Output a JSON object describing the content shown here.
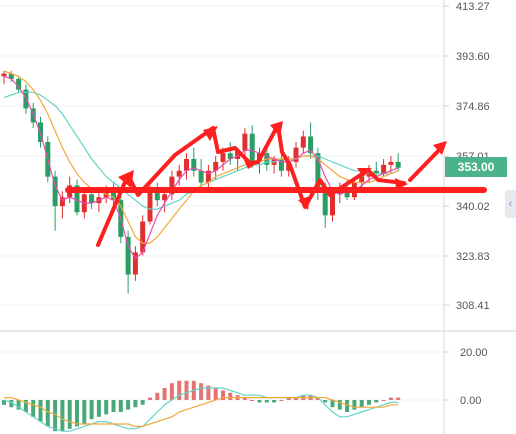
{
  "chart_data": [
    {
      "type": "candlestick",
      "yticks": [
        "413.27",
        "393.60",
        "374.86",
        "357.01",
        "340.02",
        "323.83",
        "308.41"
      ],
      "ylim": [
        300,
        416
      ],
      "last_price": "353.00",
      "colors": {
        "up": "#e02f2f",
        "down": "#2a9d62",
        "ma_fast": "#e44fae",
        "ma_mid": "#f2a93b",
        "ma_slow": "#63d4c8",
        "annotation": "#ff1f1f"
      },
      "candles": [
        [
          386,
          388,
          383,
          387
        ],
        [
          387,
          388,
          384,
          385
        ],
        [
          385,
          386,
          380,
          381
        ],
        [
          381,
          383,
          372,
          374
        ],
        [
          374,
          376,
          367,
          369
        ],
        [
          369,
          371,
          360,
          362
        ],
        [
          362,
          364,
          348,
          350
        ],
        [
          350,
          352,
          332,
          340
        ],
        [
          340,
          345,
          336,
          343
        ],
        [
          343,
          350,
          341,
          347
        ],
        [
          347,
          349,
          337,
          338
        ],
        [
          338,
          346,
          336,
          344
        ],
        [
          344,
          346,
          339,
          341
        ],
        [
          341,
          345,
          338,
          343
        ],
        [
          343,
          347,
          341,
          346
        ],
        [
          346,
          348,
          340,
          342
        ],
        [
          342,
          344,
          328,
          330
        ],
        [
          330,
          332,
          312,
          318
        ],
        [
          318,
          327,
          316,
          325
        ],
        [
          325,
          337,
          324,
          335
        ],
        [
          335,
          347,
          334,
          345
        ],
        [
          345,
          348,
          340,
          342
        ],
        [
          342,
          346,
          338,
          344
        ],
        [
          344,
          352,
          342,
          350
        ],
        [
          350,
          354,
          347,
          352
        ],
        [
          352,
          358,
          349,
          356
        ],
        [
          356,
          360,
          350,
          352
        ],
        [
          352,
          356,
          346,
          348
        ],
        [
          348,
          354,
          346,
          352
        ],
        [
          352,
          357,
          349,
          355
        ],
        [
          355,
          360,
          352,
          358
        ],
        [
          358,
          362,
          354,
          356
        ],
        [
          356,
          360,
          352,
          359
        ],
        [
          359,
          367,
          357,
          365
        ],
        [
          365,
          368,
          353,
          355
        ],
        [
          355,
          360,
          351,
          358
        ],
        [
          358,
          361,
          352,
          354
        ],
        [
          354,
          357,
          351,
          356
        ],
        [
          356,
          358,
          350,
          352
        ],
        [
          352,
          357,
          350,
          355
        ],
        [
          355,
          362,
          353,
          360
        ],
        [
          360,
          366,
          358,
          364
        ],
        [
          364,
          369,
          356,
          358
        ],
        [
          358,
          360,
          342,
          345
        ],
        [
          345,
          348,
          333,
          337
        ],
        [
          337,
          346,
          335,
          344
        ],
        [
          344,
          348,
          341,
          346
        ],
        [
          346,
          349,
          342,
          343
        ],
        [
          343,
          349,
          342,
          348
        ],
        [
          348,
          352,
          346,
          350
        ],
        [
          350,
          354,
          348,
          352
        ],
        [
          352,
          355,
          349,
          351
        ],
        [
          351,
          356,
          350,
          354
        ],
        [
          354,
          357,
          351,
          355
        ],
        [
          355,
          358,
          352,
          353
        ]
      ],
      "ma_fast": [
        386,
        385,
        382,
        378,
        372,
        365,
        356,
        347,
        342,
        343,
        342,
        341,
        341,
        342,
        343,
        342,
        336,
        327,
        323,
        325,
        331,
        337,
        341,
        345,
        349,
        352,
        353,
        352,
        351,
        352,
        354,
        356,
        357,
        359,
        359,
        358,
        357,
        356,
        355,
        355,
        356,
        358,
        359,
        356,
        350,
        345,
        344,
        345,
        345,
        347,
        349,
        350,
        351,
        352,
        353
      ],
      "ma_mid": [
        388,
        387,
        386,
        384,
        381,
        377,
        372,
        366,
        360,
        355,
        351,
        348,
        346,
        345,
        344,
        343,
        340,
        335,
        330,
        328,
        328,
        330,
        333,
        336,
        339,
        342,
        345,
        347,
        348,
        350,
        351,
        352,
        353,
        354,
        355,
        355,
        356,
        356,
        356,
        356,
        356,
        357,
        357,
        356,
        354,
        352,
        350,
        349,
        348,
        348,
        348,
        349,
        350,
        351,
        352
      ],
      "ma_slow": [
        378,
        379,
        380,
        380,
        380,
        379,
        377,
        375,
        372,
        368,
        364,
        360,
        356,
        353,
        350,
        348,
        346,
        344,
        342,
        340,
        339,
        339,
        340,
        341,
        342,
        344,
        345,
        347,
        348,
        349,
        350,
        351,
        352,
        353,
        354,
        354,
        355,
        355,
        356,
        356,
        356,
        357,
        357,
        357,
        356,
        355,
        354,
        353,
        352,
        352,
        351,
        351,
        351,
        351,
        352
      ]
    },
    {
      "type": "macd",
      "yticks": [
        "20.00",
        "0.00"
      ],
      "ylim": [
        -15,
        25
      ],
      "histogram": [
        -2,
        -3,
        -4,
        -5,
        -7,
        -9,
        -11,
        -13,
        -13,
        -12,
        -11,
        -10,
        -8,
        -7,
        -6,
        -5,
        -5,
        -4,
        -3,
        -2,
        1,
        3,
        5,
        7,
        8,
        8,
        8,
        7,
        6,
        5,
        4,
        3,
        2,
        1,
        0,
        -1,
        -1,
        -1,
        0,
        1,
        1,
        2,
        2,
        1,
        -1,
        -3,
        -4,
        -5,
        -4,
        -3,
        -2,
        -1,
        0,
        1,
        1
      ],
      "dif": [
        0,
        -1,
        -3,
        -5,
        -7,
        -9,
        -11,
        -12,
        -13,
        -13,
        -12,
        -11,
        -10,
        -9,
        -9,
        -10,
        -11,
        -12,
        -12,
        -11,
        -8,
        -5,
        -2,
        0,
        2,
        3,
        4,
        5,
        5,
        5,
        5,
        4,
        3,
        2,
        2,
        2,
        1,
        1,
        1,
        1,
        1,
        2,
        2,
        1,
        -2,
        -5,
        -7,
        -7,
        -6,
        -5,
        -4,
        -3,
        -2,
        -1,
        -1
      ],
      "dea": [
        1,
        1,
        0,
        -1,
        -2,
        -3,
        -5,
        -6,
        -8,
        -9,
        -10,
        -10,
        -10,
        -10,
        -10,
        -10,
        -10,
        -10,
        -11,
        -11,
        -10,
        -9,
        -8,
        -7,
        -5,
        -4,
        -3,
        -2,
        -1,
        0,
        1,
        1,
        1,
        1,
        1,
        1,
        1,
        1,
        1,
        1,
        1,
        1,
        1,
        1,
        1,
        0,
        -1,
        -2,
        -3,
        -3,
        -3,
        -3,
        -3,
        -2,
        -2
      ]
    }
  ]
}
